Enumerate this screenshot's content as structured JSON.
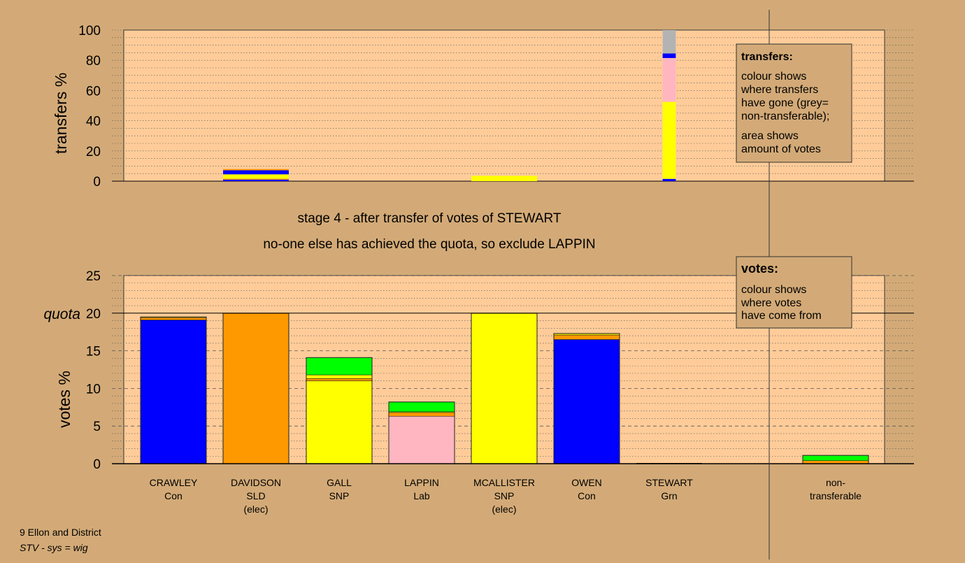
{
  "title_lines": [
    "stage 4 - after transfer of votes of STEWART",
    "no-one else has achieved the quota, so exclude LAPPIN"
  ],
  "footer": {
    "line1": "9 Ellon and District",
    "line2": "STV - sys = wig"
  },
  "legend_transfers": {
    "title": "transfers:",
    "lines": [
      "colour shows",
      "where transfers",
      "have gone (grey=",
      "non-transferable);",
      "area shows",
      "amount of votes"
    ]
  },
  "legend_votes": {
    "title": "votes:",
    "lines": [
      "colour shows",
      "where votes",
      "have come from"
    ]
  },
  "colors": {
    "background": "#d3aa77",
    "plot": "#ffcc99",
    "Con": "#0000ff",
    "SLD": "#ff9900",
    "SNP": "#ffff00",
    "Lab": "#ffb6c1",
    "Grn": "#00ff00",
    "non": "#b3b3b3"
  },
  "chart_data": [
    {
      "type": "bar",
      "name": "transfers",
      "ylabel": "transfers %",
      "ylim": [
        0,
        100
      ],
      "yticks": [
        0,
        20,
        40,
        60,
        80,
        100
      ],
      "bars": [
        {
          "category": "CRAWLEY",
          "width": 0,
          "segments": []
        },
        {
          "category": "DAVIDSON",
          "width": 1.0,
          "segments": [
            {
              "party": "Con",
              "value": 1
            },
            {
              "party": "SLD",
              "value": 0.7
            },
            {
              "party": "SNP",
              "value": 2.8
            },
            {
              "party": "Con",
              "value": 2.7
            },
            {
              "party": "SLD",
              "value": 0.8
            }
          ]
        },
        {
          "category": "GALL",
          "width": 0,
          "segments": []
        },
        {
          "category": "LAPPIN",
          "width": 0,
          "segments": []
        },
        {
          "category": "MCALLISTER",
          "width": 1.0,
          "segments": [
            {
              "party": "SNP",
              "value": 3.5
            }
          ]
        },
        {
          "category": "OWEN",
          "width": 0,
          "segments": []
        },
        {
          "category": "STEWART",
          "width": 0.2,
          "segments": [
            {
              "party": "Con",
              "value": 1.5
            },
            {
              "party": "SNP",
              "value": 51
            },
            {
              "party": "Lab",
              "value": 29
            },
            {
              "party": "Con",
              "value": 3
            },
            {
              "party": "non",
              "value": 15.5
            }
          ]
        },
        {
          "category": "non-transferable",
          "width": 0,
          "segments": []
        }
      ]
    },
    {
      "type": "bar",
      "name": "votes",
      "ylabel": "votes %",
      "ylim": [
        0,
        25
      ],
      "yticks": [
        0,
        5,
        10,
        15,
        20,
        25
      ],
      "quota": 20,
      "quota_label": "quota",
      "bars": [
        {
          "category": "CRAWLEY",
          "party": "Con",
          "sublabel": "",
          "segments": [
            {
              "party": "Con",
              "value": 19.1
            },
            {
              "party": "SLD",
              "value": 0.3
            },
            {
              "party": "SNP",
              "value": 0.1
            }
          ]
        },
        {
          "category": "DAVIDSON",
          "party": "SLD",
          "sublabel": "(elec)",
          "segments": [
            {
              "party": "SLD",
              "value": 20
            }
          ]
        },
        {
          "category": "GALL",
          "party": "SNP",
          "sublabel": "",
          "segments": [
            {
              "party": "SNP",
              "value": 11
            },
            {
              "party": "SLD",
              "value": 0.3
            },
            {
              "party": "SNP",
              "value": 0.5
            },
            {
              "party": "Grn",
              "value": 2.3
            }
          ]
        },
        {
          "category": "LAPPIN",
          "party": "Lab",
          "sublabel": "",
          "segments": [
            {
              "party": "Lab",
              "value": 6.3
            },
            {
              "party": "SLD",
              "value": 0.5
            },
            {
              "party": "SNP",
              "value": 0.1
            },
            {
              "party": "Grn",
              "value": 1.3
            }
          ]
        },
        {
          "category": "MCALLISTER",
          "party": "SNP",
          "sublabel": "(elec)",
          "segments": [
            {
              "party": "SNP",
              "value": 20
            }
          ]
        },
        {
          "category": "OWEN",
          "party": "Con",
          "sublabel": "",
          "segments": [
            {
              "party": "Con",
              "value": 16.5
            },
            {
              "party": "SLD",
              "value": 0.6
            },
            {
              "party": "SNP",
              "value": 0.2
            }
          ]
        },
        {
          "category": "STEWART",
          "party": "Grn",
          "sublabel": "",
          "segments": []
        },
        {
          "category": "non-transferable",
          "party": "",
          "sublabel": "",
          "label_lines": [
            "non-",
            "transferable"
          ],
          "segments": [
            {
              "party": "SLD",
              "value": 0.4
            },
            {
              "party": "Grn",
              "value": 0.7
            }
          ]
        }
      ]
    }
  ]
}
